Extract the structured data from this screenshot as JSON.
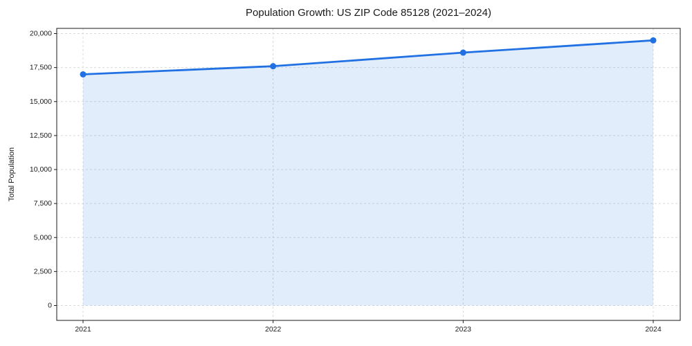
{
  "chart_data": {
    "type": "area",
    "title": "Population Growth: US ZIP Code 85128 (2021–2024)",
    "xlabel": "",
    "ylabel": "Total Population",
    "x": [
      2021,
      2022,
      2023,
      2024
    ],
    "xtick_labels": [
      "2021",
      "2022",
      "2023",
      "2024"
    ],
    "series": [
      {
        "name": "Total Population",
        "values": [
          17000,
          17600,
          18600,
          19500
        ]
      }
    ],
    "yticks": [
      0,
      2500,
      5000,
      7500,
      10000,
      12500,
      15000,
      17500,
      20000
    ],
    "ytick_labels": [
      "0",
      "2,500",
      "5,000",
      "7,500",
      "10,000",
      "12,500",
      "15,000",
      "17,500",
      "20,000"
    ],
    "ylim": [
      0,
      20000
    ],
    "grid": true,
    "grid_style": "dashed",
    "legend": "none",
    "colors": {
      "line": "#2171e3",
      "fill": "rgba(33, 113, 227, 0.13)",
      "grid": "#d9d9d9",
      "spine": "#1a1a1a",
      "text": "#1a1a1a"
    }
  }
}
